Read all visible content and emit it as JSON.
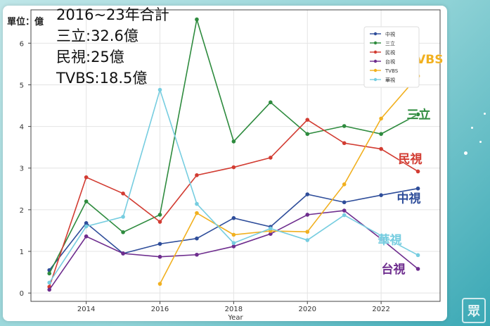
{
  "overlay": {
    "unit": "單位：億",
    "line1": "2016~23年合計",
    "line2": "三立:32.6億",
    "line3": "民視:25億",
    "line4": "TVBS:18.5億"
  },
  "watermark": "眾",
  "chart_data": {
    "type": "line",
    "xlabel": "Year",
    "ylabel": "",
    "xlim": [
      2012.5,
      2023.6
    ],
    "ylim": [
      -0.2,
      6.8
    ],
    "x_ticks": [
      2014,
      2016,
      2018,
      2020,
      2022
    ],
    "y_ticks": [
      0,
      1,
      2,
      3,
      4,
      5,
      6
    ],
    "legend_position": "top-right",
    "grid": true,
    "series": [
      {
        "name": "中視",
        "color": "#2e4d9a",
        "label": "中視",
        "x": [
          2013,
          2014,
          2015,
          2016,
          2017,
          2018,
          2019,
          2020,
          2021,
          2022,
          2023
        ],
        "y": [
          0.55,
          1.68,
          0.95,
          1.18,
          1.31,
          1.8,
          1.59,
          2.37,
          2.18,
          2.35,
          2.51
        ]
      },
      {
        "name": "三立",
        "color": "#2e8b3e",
        "label": "三立",
        "x": [
          2013,
          2014,
          2015,
          2016,
          2017,
          2018,
          2019,
          2020,
          2021,
          2022,
          2023
        ],
        "y": [
          0.47,
          2.2,
          1.46,
          1.88,
          6.57,
          3.64,
          4.58,
          3.82,
          4.01,
          3.82,
          4.29
        ]
      },
      {
        "name": "民視",
        "color": "#d23c32",
        "label": "民視",
        "x": [
          2013,
          2014,
          2015,
          2016,
          2017,
          2018,
          2019,
          2020,
          2021,
          2022,
          2023
        ],
        "y": [
          0.15,
          2.78,
          2.39,
          1.71,
          2.83,
          3.02,
          3.25,
          4.16,
          3.6,
          3.46,
          2.92
        ]
      },
      {
        "name": "台視",
        "color": "#6e2d8e",
        "label": "台視",
        "x": [
          2013,
          2014,
          2015,
          2016,
          2017,
          2018,
          2019,
          2020,
          2021,
          2022,
          2023
        ],
        "y": [
          0.08,
          1.36,
          0.95,
          0.87,
          0.92,
          1.12,
          1.42,
          1.88,
          1.98,
          1.3,
          0.58
        ]
      },
      {
        "name": "TVBS",
        "color": "#f1b01f",
        "label": "TVBS",
        "x": [
          2016,
          2017,
          2018,
          2019,
          2020,
          2021,
          2022,
          2023
        ],
        "y": [
          0.22,
          1.92,
          1.4,
          1.49,
          1.47,
          2.61,
          4.19,
          5.21
        ]
      },
      {
        "name": "華視",
        "color": "#76cde0",
        "label": "華視",
        "x": [
          2013,
          2014,
          2015,
          2016,
          2017,
          2018,
          2019,
          2020,
          2021,
          2022,
          2023
        ],
        "y": [
          0.25,
          1.6,
          1.83,
          4.88,
          2.14,
          1.2,
          1.55,
          1.27,
          1.87,
          1.38,
          0.91
        ]
      }
    ]
  }
}
